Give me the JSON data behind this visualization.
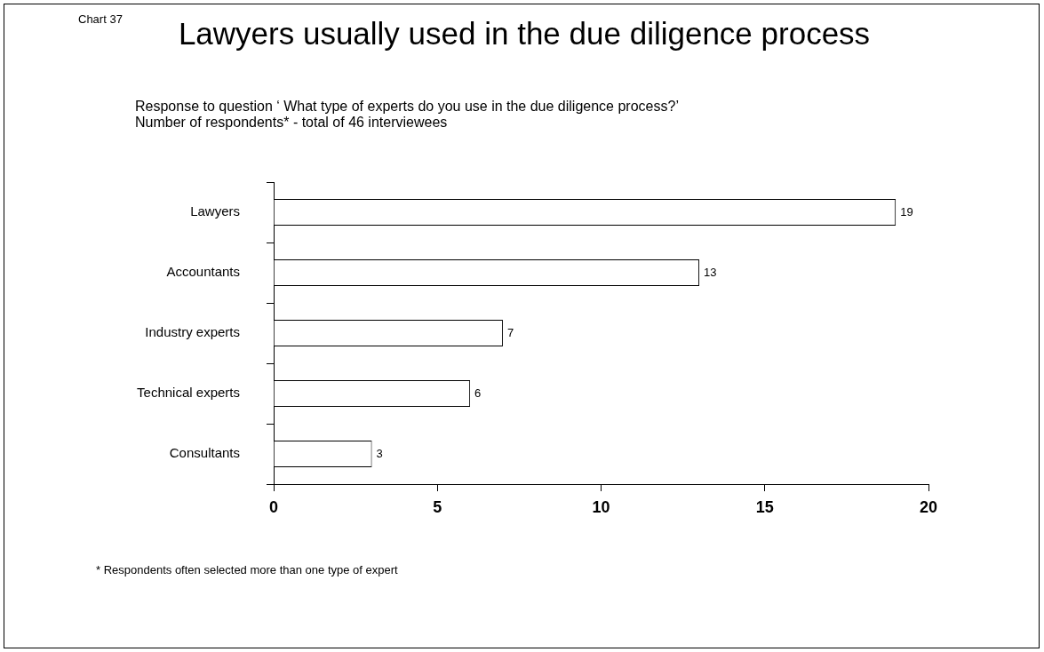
{
  "chart_data": {
    "type": "bar",
    "orientation": "horizontal",
    "title": "Lawyers usually used in the due diligence process",
    "subtitle": "Response to question ‘ What type of experts do you use in the due diligence process?’",
    "annotations": [
      "Chart 37",
      "Number of respondents* - total of 46 interviewees",
      "* Respondents often selected more than one type of expert"
    ],
    "categories": [
      "Lawyers",
      "Accountants",
      "Industry experts",
      "Technical experts",
      "Consultants"
    ],
    "values": [
      19,
      13,
      7,
      6,
      3
    ],
    "color": "#ffffff",
    "data_labels": true,
    "xlim": [
      0,
      20
    ],
    "xticks": [
      0,
      5,
      10,
      15,
      20
    ],
    "grid": false,
    "legend": false
  }
}
